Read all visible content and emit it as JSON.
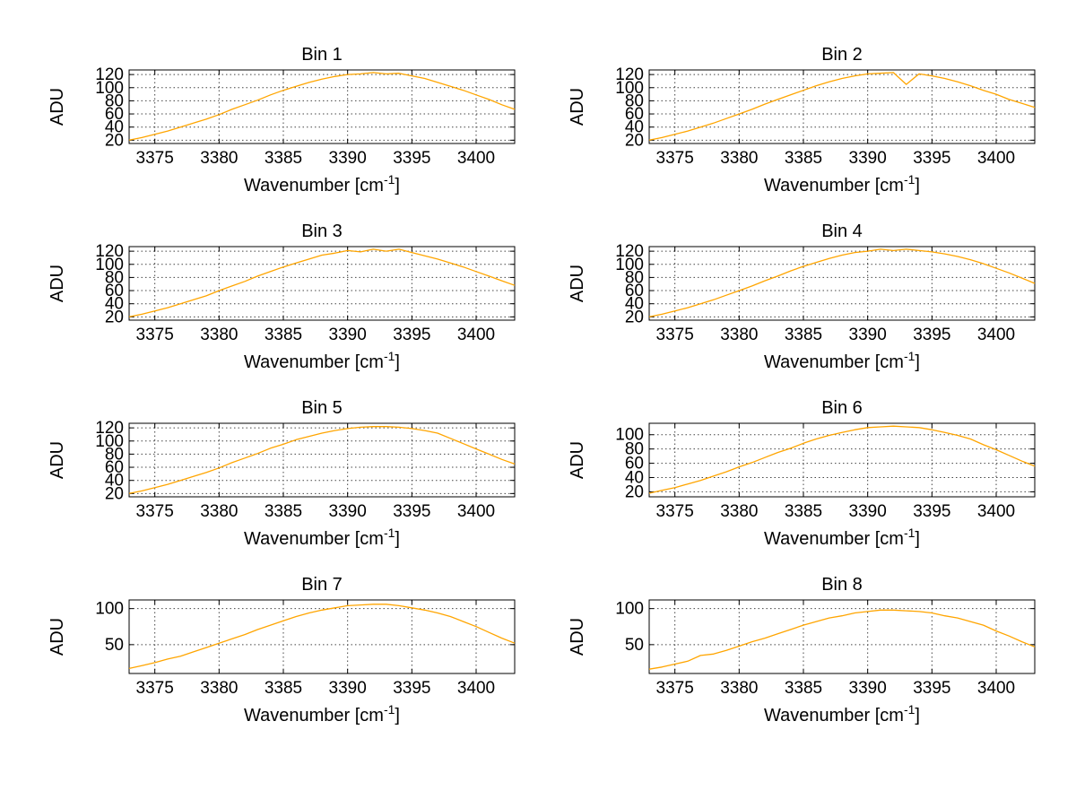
{
  "figure": {
    "background": "#ffffff",
    "line_color": "#ffa500",
    "grid_color": "#444444"
  },
  "chart_data": [
    {
      "type": "line",
      "title": "Bin 1",
      "ylabel": "ADU",
      "xlabel": {
        "base": "Wavenumber [cm",
        "sup": "-1",
        "end": "]"
      },
      "xlim": [
        3373,
        3403
      ],
      "ylim": [
        15,
        127
      ],
      "xticks": [
        3375,
        3380,
        3385,
        3390,
        3395,
        3400
      ],
      "yticks": [
        20,
        40,
        60,
        80,
        100,
        120
      ],
      "grid": "dotted",
      "legend": "none",
      "line_color": "#ffa500",
      "x": [
        3373,
        3374,
        3375,
        3376,
        3377,
        3378,
        3379,
        3380,
        3381,
        3382,
        3383,
        3384,
        3385,
        3386,
        3387,
        3388,
        3389,
        3390,
        3391,
        3392,
        3393,
        3394,
        3395,
        3396,
        3397,
        3398,
        3399,
        3400,
        3401,
        3402,
        3403
      ],
      "y": [
        20,
        24,
        29,
        34,
        40,
        46,
        52,
        59,
        67,
        74,
        81,
        89,
        96,
        102,
        108,
        113,
        117,
        120,
        121,
        123,
        121,
        122,
        118,
        114,
        108,
        102,
        96,
        89,
        82,
        74,
        67
      ]
    },
    {
      "type": "line",
      "title": "Bin 2",
      "ylabel": "ADU",
      "xlabel": {
        "base": "Wavenumber [cm",
        "sup": "-1",
        "end": "]"
      },
      "xlim": [
        3373,
        3403
      ],
      "ylim": [
        15,
        127
      ],
      "xticks": [
        3375,
        3380,
        3385,
        3390,
        3395,
        3400
      ],
      "yticks": [
        20,
        40,
        60,
        80,
        100,
        120
      ],
      "grid": "dotted",
      "legend": "none",
      "line_color": "#ffa500",
      "x": [
        3373,
        3374,
        3375,
        3376,
        3377,
        3378,
        3379,
        3380,
        3381,
        3382,
        3383,
        3384,
        3385,
        3386,
        3387,
        3388,
        3389,
        3390,
        3391,
        3392,
        3393,
        3394,
        3395,
        3396,
        3397,
        3398,
        3399,
        3400,
        3401,
        3402,
        3403
      ],
      "y": [
        20,
        24,
        29,
        34,
        40,
        46,
        53,
        60,
        67,
        75,
        82,
        89,
        96,
        103,
        109,
        114,
        118,
        121,
        122,
        123,
        105,
        121,
        118,
        114,
        109,
        103,
        96,
        90,
        82,
        76,
        70
      ]
    },
    {
      "type": "line",
      "title": "Bin 3",
      "ylabel": "ADU",
      "xlabel": {
        "base": "Wavenumber [cm",
        "sup": "-1",
        "end": "]"
      },
      "xlim": [
        3373,
        3403
      ],
      "ylim": [
        15,
        127
      ],
      "xticks": [
        3375,
        3380,
        3385,
        3390,
        3395,
        3400
      ],
      "yticks": [
        20,
        40,
        60,
        80,
        100,
        120
      ],
      "grid": "dotted",
      "legend": "none",
      "line_color": "#ffa500",
      "x": [
        3373,
        3374,
        3375,
        3376,
        3377,
        3378,
        3379,
        3380,
        3381,
        3382,
        3383,
        3384,
        3385,
        3386,
        3387,
        3388,
        3389,
        3390,
        3391,
        3392,
        3393,
        3394,
        3395,
        3396,
        3397,
        3398,
        3399,
        3400,
        3401,
        3402,
        3403
      ],
      "y": [
        20,
        24,
        29,
        34,
        40,
        46,
        52,
        60,
        67,
        74,
        82,
        89,
        96,
        102,
        108,
        114,
        117,
        121,
        119,
        123,
        120,
        123,
        118,
        113,
        108,
        102,
        96,
        89,
        82,
        75,
        68
      ]
    },
    {
      "type": "line",
      "title": "Bin 4",
      "ylabel": "ADU",
      "xlabel": {
        "base": "Wavenumber [cm",
        "sup": "-1",
        "end": "]"
      },
      "xlim": [
        3373,
        3403
      ],
      "ylim": [
        15,
        127
      ],
      "xticks": [
        3375,
        3380,
        3385,
        3390,
        3395,
        3400
      ],
      "yticks": [
        20,
        40,
        60,
        80,
        100,
        120
      ],
      "grid": "dotted",
      "legend": "none",
      "line_color": "#ffa500",
      "x": [
        3373,
        3374,
        3375,
        3376,
        3377,
        3378,
        3379,
        3380,
        3381,
        3382,
        3383,
        3384,
        3385,
        3386,
        3387,
        3388,
        3389,
        3390,
        3391,
        3392,
        3393,
        3394,
        3395,
        3396,
        3397,
        3398,
        3399,
        3400,
        3401,
        3402,
        3403
      ],
      "y": [
        20,
        24,
        29,
        34,
        40,
        46,
        53,
        60,
        67,
        75,
        82,
        90,
        97,
        103,
        109,
        114,
        118,
        120,
        123,
        121,
        123,
        121,
        119,
        116,
        112,
        107,
        101,
        94,
        87,
        79,
        71
      ]
    },
    {
      "type": "line",
      "title": "Bin 5",
      "ylabel": "ADU",
      "xlabel": {
        "base": "Wavenumber [cm",
        "sup": "-1",
        "end": "]"
      },
      "xlim": [
        3373,
        3403
      ],
      "ylim": [
        15,
        127
      ],
      "xticks": [
        3375,
        3380,
        3385,
        3390,
        3395,
        3400
      ],
      "yticks": [
        20,
        40,
        60,
        80,
        100,
        120
      ],
      "grid": "dotted",
      "legend": "none",
      "line_color": "#ffa500",
      "x": [
        3373,
        3374,
        3375,
        3376,
        3377,
        3378,
        3379,
        3380,
        3381,
        3382,
        3383,
        3384,
        3385,
        3386,
        3387,
        3388,
        3389,
        3390,
        3391,
        3392,
        3393,
        3394,
        3395,
        3396,
        3397,
        3398,
        3399,
        3400,
        3401,
        3402,
        3403
      ],
      "y": [
        20,
        24,
        29,
        34,
        40,
        46,
        52,
        59,
        67,
        74,
        81,
        89,
        95,
        102,
        107,
        112,
        116,
        119,
        121,
        122,
        122,
        121,
        119,
        116,
        112,
        104,
        96,
        88,
        80,
        72,
        65
      ]
    },
    {
      "type": "line",
      "title": "Bin 6",
      "ylabel": "ADU",
      "xlabel": {
        "base": "Wavenumber [cm",
        "sup": "-1",
        "end": "]"
      },
      "xlim": [
        3373,
        3403
      ],
      "ylim": [
        13,
        116
      ],
      "xticks": [
        3375,
        3380,
        3385,
        3390,
        3395,
        3400
      ],
      "yticks": [
        20,
        40,
        60,
        80,
        100
      ],
      "grid": "dotted",
      "legend": "none",
      "line_color": "#ffa500",
      "x": [
        3373,
        3374,
        3375,
        3376,
        3377,
        3378,
        3379,
        3380,
        3381,
        3382,
        3383,
        3384,
        3385,
        3386,
        3387,
        3388,
        3389,
        3390,
        3391,
        3392,
        3393,
        3394,
        3395,
        3396,
        3397,
        3398,
        3399,
        3400,
        3401,
        3402,
        3403
      ],
      "y": [
        18,
        22,
        26,
        31,
        36,
        42,
        48,
        55,
        61,
        68,
        75,
        81,
        88,
        94,
        99,
        103,
        107,
        110,
        111,
        112,
        111,
        110,
        107,
        103,
        99,
        94,
        86,
        79,
        71,
        63,
        56
      ]
    },
    {
      "type": "line",
      "title": "Bin 7",
      "ylabel": "ADU",
      "xlabel": {
        "base": "Wavenumber [cm",
        "sup": "-1",
        "end": "]"
      },
      "xlim": [
        3373,
        3403
      ],
      "ylim": [
        10,
        112
      ],
      "xticks": [
        3375,
        3380,
        3385,
        3390,
        3395,
        3400
      ],
      "yticks": [
        50,
        100
      ],
      "grid": "dotted",
      "legend": "none",
      "line_color": "#ffa500",
      "x": [
        3373,
        3374,
        3375,
        3376,
        3377,
        3378,
        3379,
        3380,
        3381,
        3382,
        3383,
        3384,
        3385,
        3386,
        3387,
        3388,
        3389,
        3390,
        3391,
        3392,
        3393,
        3394,
        3395,
        3396,
        3397,
        3398,
        3399,
        3400,
        3401,
        3402,
        3403
      ],
      "y": [
        17,
        21,
        25,
        30,
        34,
        40,
        46,
        52,
        58,
        64,
        71,
        77,
        83,
        89,
        94,
        98,
        101,
        104,
        105,
        106,
        106,
        104,
        101,
        98,
        94,
        89,
        82,
        75,
        67,
        59,
        52
      ]
    },
    {
      "type": "line",
      "title": "Bin 8",
      "ylabel": "ADU",
      "xlabel": {
        "base": "Wavenumber [cm",
        "sup": "-1",
        "end": "]"
      },
      "xlim": [
        3373,
        3403
      ],
      "ylim": [
        10,
        112
      ],
      "xticks": [
        3375,
        3380,
        3385,
        3390,
        3395,
        3400
      ],
      "yticks": [
        50,
        100
      ],
      "grid": "dotted",
      "legend": "none",
      "line_color": "#ffa500",
      "x": [
        3373,
        3374,
        3375,
        3376,
        3377,
        3378,
        3379,
        3380,
        3381,
        3382,
        3383,
        3384,
        3385,
        3386,
        3387,
        3388,
        3389,
        3390,
        3391,
        3392,
        3393,
        3394,
        3395,
        3396,
        3397,
        3398,
        3399,
        3400,
        3401,
        3402,
        3403
      ],
      "y": [
        16,
        19,
        23,
        27,
        35,
        37,
        42,
        48,
        54,
        59,
        65,
        71,
        77,
        82,
        87,
        90,
        94,
        96,
        98,
        98,
        97,
        96,
        94,
        90,
        87,
        82,
        77,
        69,
        62,
        54,
        47
      ]
    }
  ]
}
